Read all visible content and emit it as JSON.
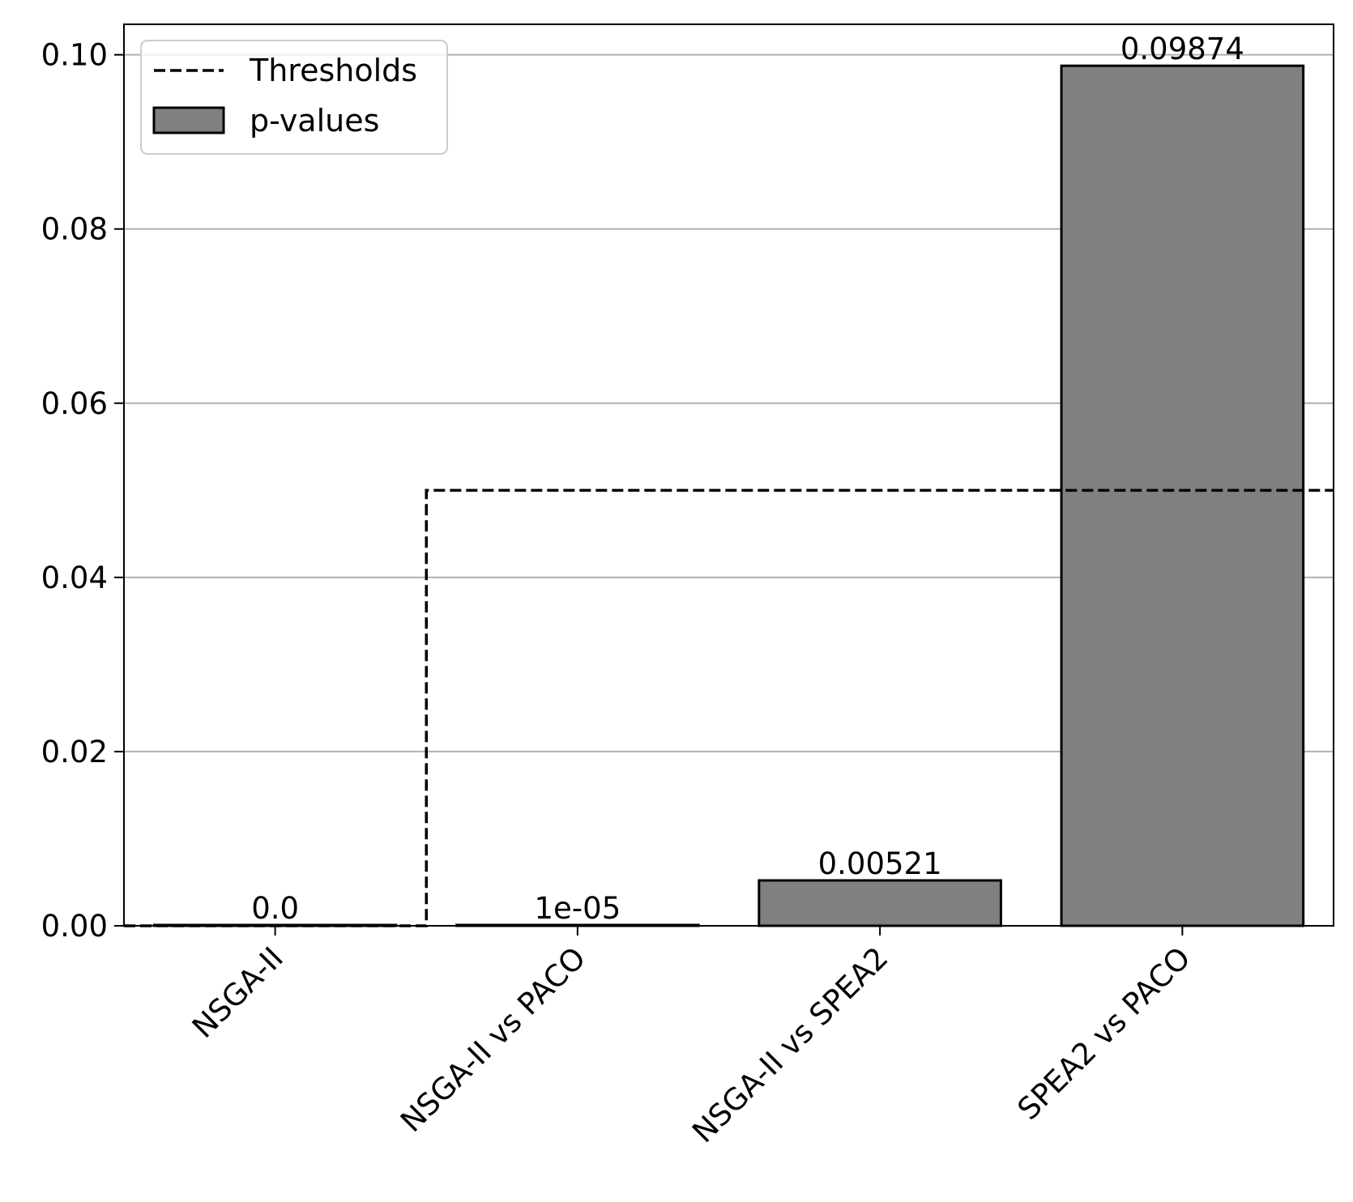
{
  "chart_data": {
    "type": "bar",
    "title": "",
    "xlabel": "",
    "ylabel": "",
    "categories": [
      "NSGA-II",
      "NSGA-II vs PACO",
      "NSGA-II vs SPEA2",
      "SPEA2 vs PACO"
    ],
    "series": [
      {
        "name": "p-values",
        "values": [
          0.0,
          1e-05,
          0.00521,
          0.09874
        ],
        "value_labels": [
          "0.0",
          "1e-05",
          "0.00521",
          "0.09874"
        ],
        "color": "#808080",
        "edge_color": "#000000"
      }
    ],
    "thresholds": {
      "name": "Thresholds",
      "style": "dashed",
      "color": "#000000",
      "steps": [
        {
          "category_start": -0.5,
          "category_end": 0.5,
          "value": 0.0
        },
        {
          "category_start": 0.5,
          "category_end": 3.5,
          "value": 0.05
        }
      ]
    },
    "ylim": [
      0,
      0.1035
    ],
    "yticks": [
      0.0,
      0.02,
      0.04,
      0.06,
      0.08,
      0.1
    ],
    "ytick_labels": [
      "0.00",
      "0.02",
      "0.04",
      "0.06",
      "0.08",
      "0.10"
    ],
    "grid": "y",
    "grid_color": "#b0b0b0",
    "legend": {
      "placement": "top-left",
      "entries": [
        {
          "label": "Thresholds",
          "kind": "dashed-line"
        },
        {
          "label": "p-values",
          "kind": "patch"
        }
      ]
    }
  }
}
